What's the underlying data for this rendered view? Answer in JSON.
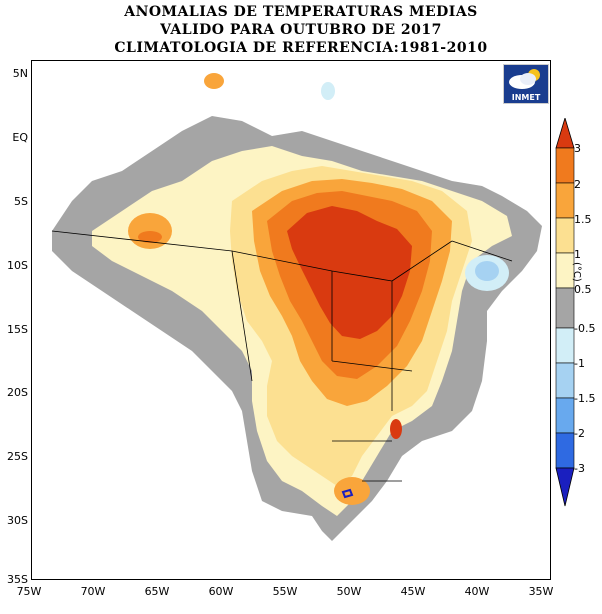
{
  "header": {
    "line1": "ANOMALIAS DE TEMPERATURAS MEDIAS",
    "line2": "VALIDO PARA OUTUBRO DE 2017",
    "line3": "CLIMATOLOGIA DE REFERENCIA:1981-2010"
  },
  "logo": {
    "text": "INMET",
    "icon": "cloud-sun-icon"
  },
  "map": {
    "lat_labels": [
      "5N",
      "EQ",
      "5S",
      "10S",
      "15S",
      "20S",
      "25S",
      "30S",
      "35S"
    ],
    "lon_labels": [
      "75W",
      "70W",
      "65W",
      "60W",
      "55W",
      "50W",
      "45W",
      "40W",
      "35W"
    ],
    "lon_range": [
      -75,
      -35
    ],
    "lat_range": [
      -35,
      5
    ]
  },
  "colorbar": {
    "labels": [
      "3",
      "2",
      "1.5",
      "1",
      "0.5",
      "-0.5",
      "-1",
      "-1.5",
      "-2",
      "-3"
    ],
    "unit": "(°C)",
    "colors": [
      "#d93a10",
      "#f07a1e",
      "#f9a53b",
      "#fce091",
      "#fdf4c4",
      "#a5a5a5",
      "#d2eef7",
      "#a6d2f2",
      "#68a9ee",
      "#2f6ae2",
      "#1a1fbf"
    ]
  }
}
